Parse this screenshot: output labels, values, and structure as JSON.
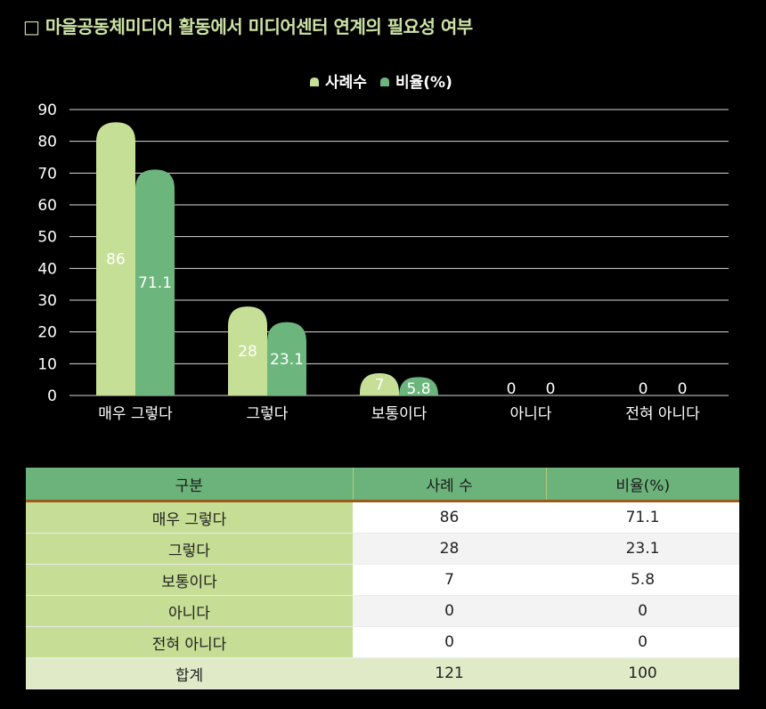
{
  "title": "□ 마을공동체미디어 활동에서 미디어센터 연계의 필요성 여부",
  "colors": {
    "series1": "#c5df96",
    "series2": "#6cb67d",
    "title": "#cde3a5",
    "table_header": "#6cb37b"
  },
  "chart_data": {
    "type": "bar",
    "categories": [
      "매우 그렇다",
      "그렇다",
      "보통이다",
      "아니다",
      "전혀 아니다"
    ],
    "series": [
      {
        "name": "사례수",
        "values": [
          86,
          28,
          7,
          0,
          0
        ]
      },
      {
        "name": "비율(%)",
        "values": [
          71.1,
          23.1,
          5.8,
          0,
          0
        ]
      }
    ],
    "y_ticks": [
      "0",
      "10",
      "20",
      "30",
      "40",
      "50",
      "60",
      "70",
      "80",
      "90"
    ],
    "ylim": [
      0,
      90
    ],
    "grid": true,
    "legend_position": "top-center",
    "data_labels": true
  },
  "table": {
    "headers": [
      "구분",
      "사례 수",
      "비율(%)"
    ],
    "rows": [
      [
        "매우 그렇다",
        "86",
        "71.1"
      ],
      [
        "그렇다",
        "28",
        "23.1"
      ],
      [
        "보통이다",
        "7",
        "5.8"
      ],
      [
        "아니다",
        "0",
        "0"
      ],
      [
        "전혀 아니다",
        "0",
        "0"
      ]
    ],
    "total": [
      "합계",
      "121",
      "100"
    ]
  }
}
